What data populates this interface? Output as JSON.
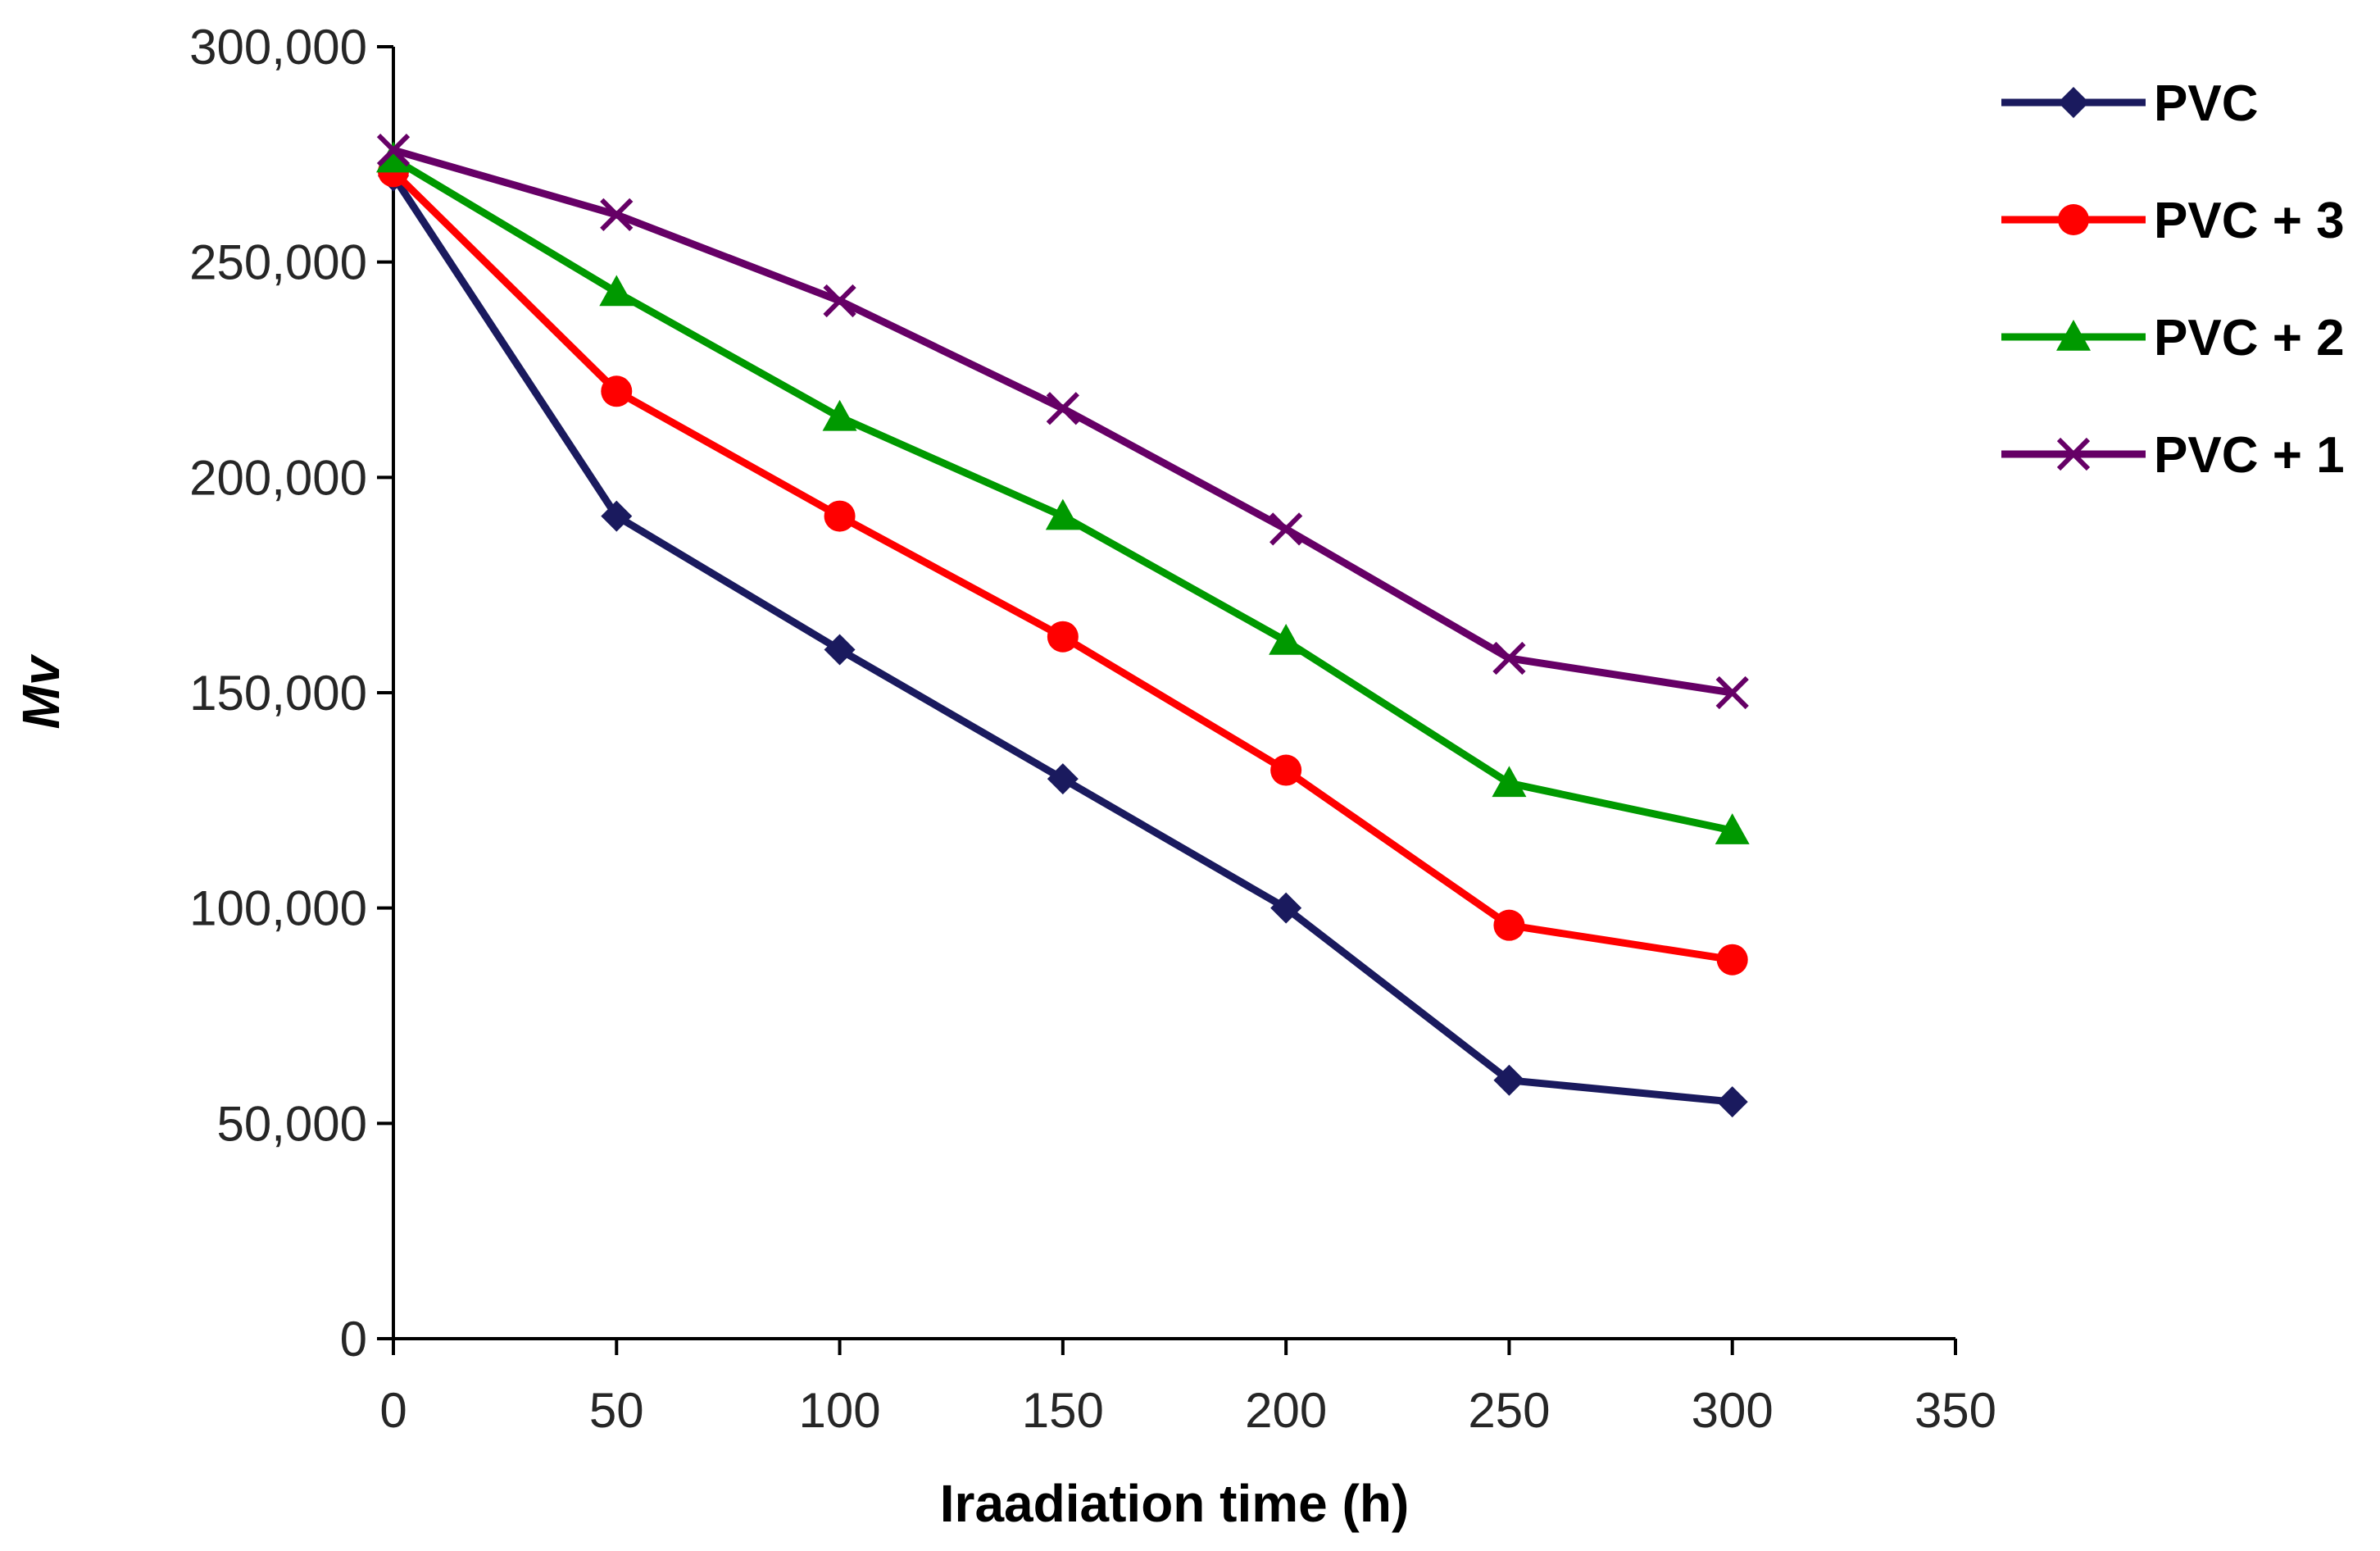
{
  "chart_data": {
    "type": "line",
    "title": "",
    "xlabel": "Iraadiation time (h)",
    "ylabel": "Mv",
    "xlim": [
      0,
      350
    ],
    "ylim": [
      0,
      300000
    ],
    "x_ticks": [
      0,
      50,
      100,
      150,
      200,
      250,
      300,
      350
    ],
    "x_tick_labels": [
      "0",
      "50",
      "100",
      "150",
      "200",
      "250",
      "300",
      "350"
    ],
    "y_ticks": [
      0,
      50000,
      100000,
      150000,
      200000,
      250000,
      300000
    ],
    "y_tick_labels": [
      "0",
      "50,000",
      "100,000",
      "150,000",
      "200,000",
      "250,000",
      "300,000"
    ],
    "grid": false,
    "legend_position": "top-right",
    "x": [
      0,
      50,
      100,
      150,
      200,
      250,
      300
    ],
    "series": [
      {
        "name": "PVC",
        "color": "#1a1a5e",
        "marker": "diamond",
        "values": [
          270000,
          191000,
          160000,
          130000,
          100000,
          60000,
          55000
        ]
      },
      {
        "name": "PVC + 3",
        "color": "#ff0000",
        "marker": "circle",
        "values": [
          271000,
          220000,
          191000,
          163000,
          132000,
          96000,
          88000
        ]
      },
      {
        "name": "PVC + 2",
        "color": "#009900",
        "marker": "triangle",
        "values": [
          274000,
          243000,
          214000,
          191000,
          162000,
          129000,
          118000
        ]
      },
      {
        "name": "PVC + 1",
        "color": "#660066",
        "marker": "x",
        "values": [
          276000,
          261000,
          241000,
          216000,
          188000,
          158000,
          150000
        ]
      }
    ]
  }
}
